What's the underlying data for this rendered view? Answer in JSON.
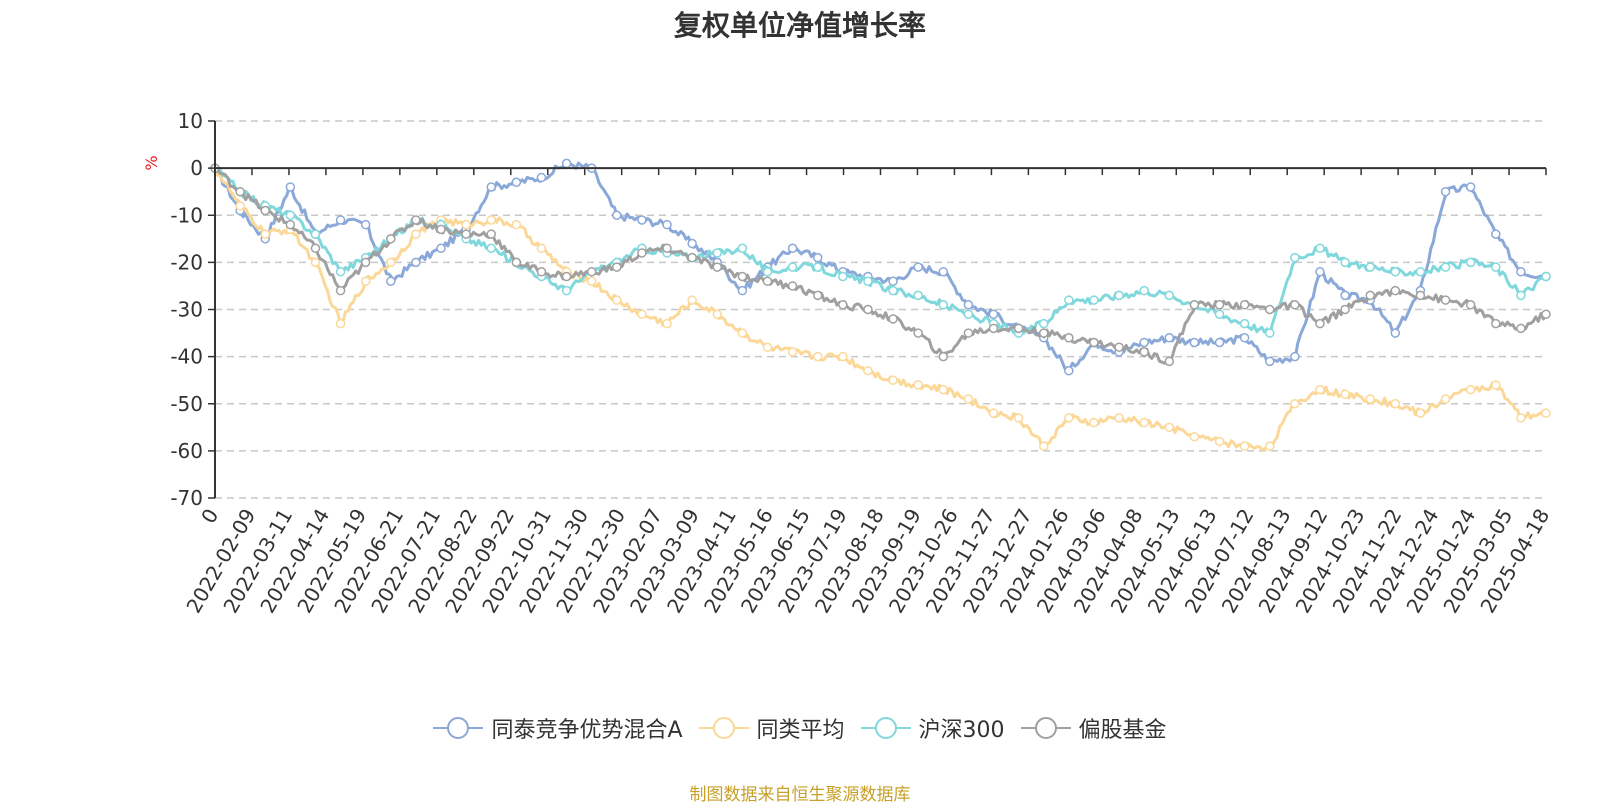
{
  "colors": {
    "series": [
      "#8aa8d8",
      "#fcd898",
      "#80d8dc",
      "#a0a0a0"
    ],
    "unit": "#e02020",
    "source": "#c8a028",
    "grid": "#c8c8c8",
    "axis": "#333333"
  },
  "chart_data": {
    "type": "line",
    "title": "复权单位净值增长率",
    "ylabel": "%",
    "xlabel": "",
    "ylim": [
      -70,
      10
    ],
    "yticks": [
      "10",
      "0",
      "-10",
      "-20",
      "-30",
      "-40",
      "-50",
      "-60",
      "-70"
    ],
    "grid": true,
    "legend_position": "bottom",
    "x_tick_labels": [
      "0",
      "2022-02-09",
      "2022-03-11",
      "2022-04-14",
      "2022-05-19",
      "2022-06-21",
      "2022-07-21",
      "2022-08-22",
      "2022-09-22",
      "2022-10-31",
      "2022-11-30",
      "2022-12-30",
      "2023-02-07",
      "2023-03-09",
      "2023-04-11",
      "2023-05-16",
      "2023-06-15",
      "2023-07-19",
      "2023-08-18",
      "2023-09-19",
      "2023-10-26",
      "2023-11-27",
      "2023-12-27",
      "2024-01-26",
      "2024-03-06",
      "2024-04-08",
      "2024-05-13",
      "2024-06-13",
      "2024-07-12",
      "2024-08-13",
      "2024-09-12",
      "2024-10-23",
      "2024-11-22",
      "2024-12-24",
      "2025-01-24",
      "2025-03-05",
      "2025-04-18"
    ],
    "series": [
      {
        "name": "同泰竞争优势混合A",
        "values": [
          0,
          -9,
          -15,
          -4,
          -14,
          -11,
          -12,
          -24,
          -20,
          -17,
          -13,
          -4,
          -3,
          -2,
          1,
          0,
          -10,
          -11,
          -12,
          -16,
          -20,
          -26,
          -21,
          -17,
          -19,
          -22,
          -23,
          -24,
          -21,
          -22,
          -29,
          -31,
          -34,
          -36,
          -43,
          -37,
          -39,
          -37,
          -36,
          -37,
          -37,
          -36,
          -41,
          -40,
          -22,
          -27,
          -28,
          -35,
          -26,
          -5,
          -4,
          -14,
          -22,
          -23
        ]
      },
      {
        "name": "同类平均",
        "values": [
          0,
          -8,
          -14,
          -13,
          -20,
          -33,
          -24,
          -20,
          -14,
          -11,
          -12,
          -11,
          -12,
          -17,
          -22,
          -24,
          -28,
          -31,
          -33,
          -28,
          -31,
          -35,
          -38,
          -39,
          -40,
          -40,
          -43,
          -45,
          -46,
          -47,
          -49,
          -52,
          -53,
          -59,
          -53,
          -54,
          -53,
          -54,
          -55,
          -57,
          -58,
          -59,
          -59,
          -50,
          -47,
          -48,
          -49,
          -50,
          -52,
          -49,
          -47,
          -46,
          -53,
          -52
        ]
      },
      {
        "name": "沪深300",
        "values": [
          0,
          -5,
          -8,
          -10,
          -14,
          -22,
          -19,
          -15,
          -11,
          -12,
          -15,
          -17,
          -20,
          -23,
          -26,
          -22,
          -20,
          -17,
          -18,
          -19,
          -18,
          -17,
          -22,
          -21,
          -21,
          -23,
          -24,
          -26,
          -27,
          -29,
          -31,
          -33,
          -35,
          -33,
          -28,
          -28,
          -27,
          -26,
          -27,
          -29,
          -31,
          -33,
          -35,
          -19,
          -17,
          -20,
          -21,
          -22,
          -22,
          -21,
          -20,
          -21,
          -27,
          -23
        ]
      },
      {
        "name": "偏股基金",
        "values": [
          0,
          -5,
          -9,
          -12,
          -17,
          -26,
          -20,
          -15,
          -11,
          -13,
          -14,
          -14,
          -20,
          -22,
          -23,
          -22,
          -21,
          -18,
          -17,
          -19,
          -21,
          -23,
          -24,
          -25,
          -27,
          -29,
          -30,
          -32,
          -35,
          -40,
          -35,
          -34,
          -34,
          -35,
          -36,
          -37,
          -38,
          -39,
          -41,
          -29,
          -29,
          -29,
          -30,
          -29,
          -33,
          -30,
          -27,
          -26,
          -27,
          -28,
          -29,
          -33,
          -34,
          -31
        ]
      }
    ]
  },
  "legend": {
    "items": [
      "同泰竞争优势混合A",
      "同类平均",
      "沪深300",
      "偏股基金"
    ]
  },
  "source_note": "制图数据来自恒生聚源数据库"
}
